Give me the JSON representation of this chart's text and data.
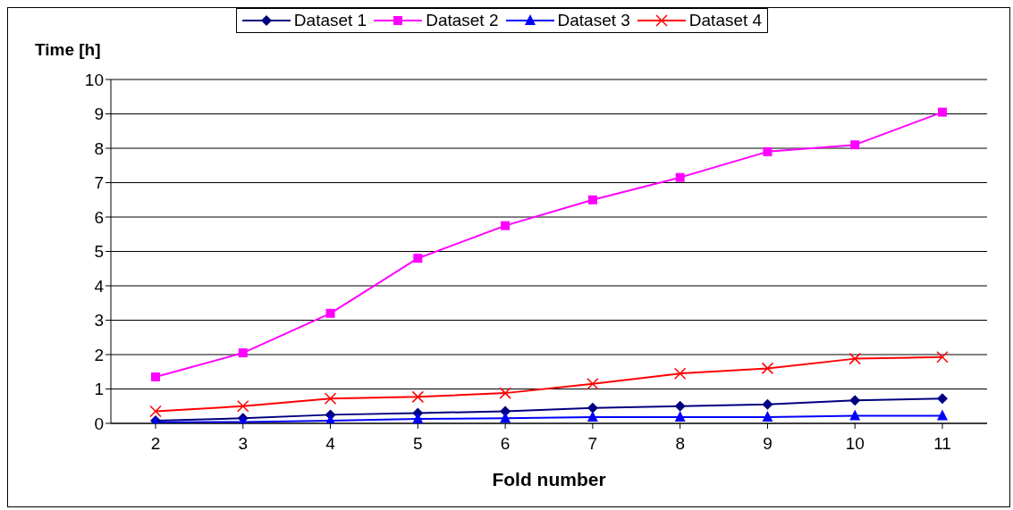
{
  "chart_data": {
    "type": "line",
    "xlabel": "Fold number",
    "ylabel": "Time [h]",
    "categories": [
      "2",
      "3",
      "4",
      "5",
      "6",
      "7",
      "8",
      "9",
      "10",
      "11"
    ],
    "series": [
      {
        "name": "Dataset 1",
        "color": "#000080",
        "marker": "diamond",
        "values": [
          0.08,
          0.15,
          0.25,
          0.3,
          0.35,
          0.45,
          0.5,
          0.55,
          0.67,
          0.72
        ]
      },
      {
        "name": "Dataset 2",
        "color": "#ff00ff",
        "marker": "square",
        "values": [
          1.35,
          2.05,
          3.2,
          4.8,
          5.75,
          6.5,
          7.15,
          7.9,
          8.1,
          9.05
        ]
      },
      {
        "name": "Dataset 3",
        "color": "#0000ff",
        "marker": "triangle",
        "values": [
          0.03,
          0.04,
          0.08,
          0.13,
          0.15,
          0.18,
          0.18,
          0.18,
          0.22,
          0.22
        ]
      },
      {
        "name": "Dataset 4",
        "color": "#ff0000",
        "marker": "cross",
        "values": [
          0.35,
          0.5,
          0.72,
          0.77,
          0.88,
          1.15,
          1.45,
          1.6,
          1.88,
          1.93
        ]
      }
    ],
    "ylim": [
      0,
      10
    ],
    "yticks": [
      0,
      1,
      2,
      3,
      4,
      5,
      6,
      7,
      8,
      9,
      10
    ],
    "grid": "y",
    "legend": "top",
    "line_style": "solid"
  }
}
